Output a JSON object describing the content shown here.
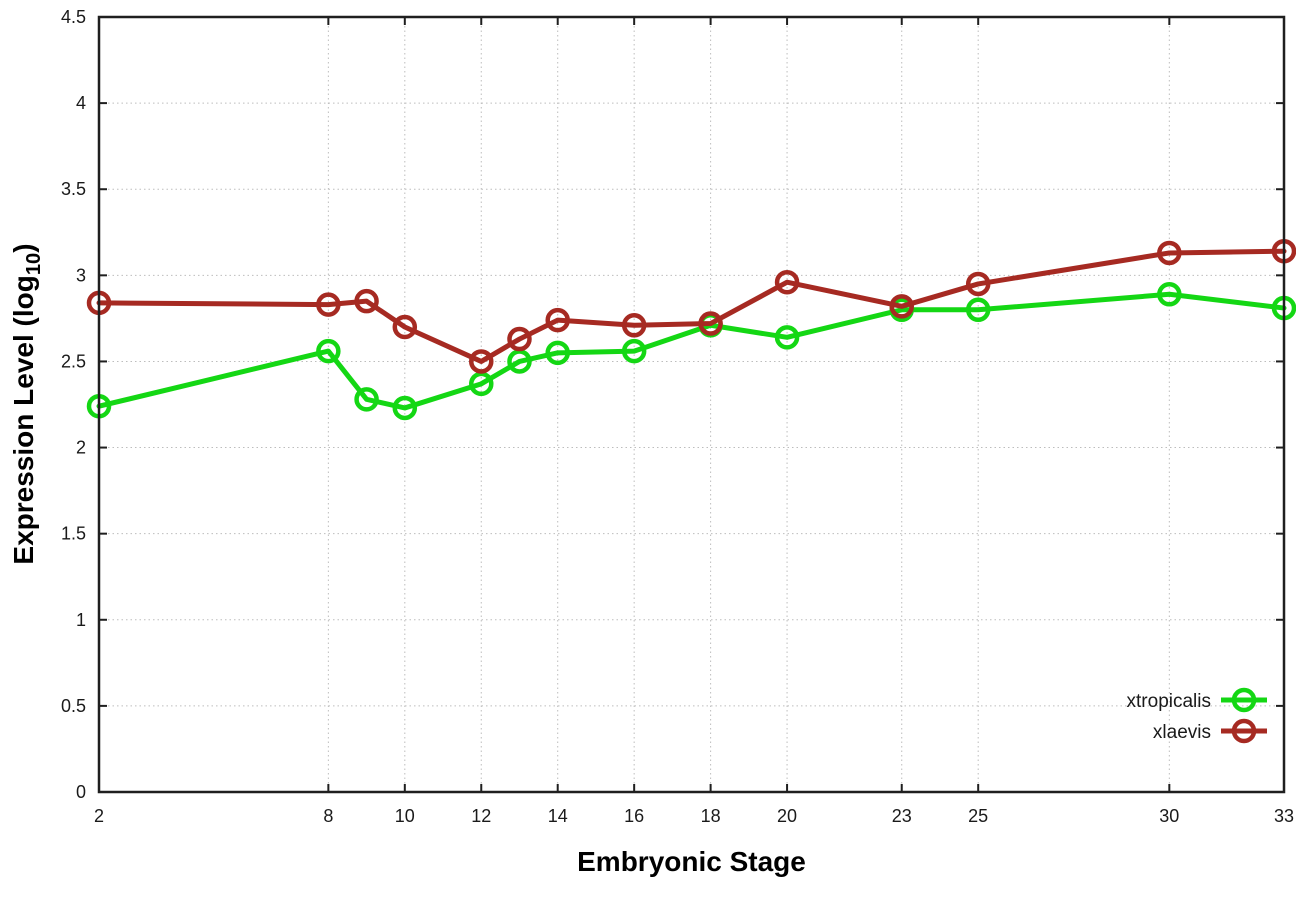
{
  "chart_data": {
    "type": "line",
    "title": "",
    "xlabel": "Embryonic Stage",
    "ylabel": "Expression Level (log10)",
    "ylabel_parts": {
      "prefix": "Expression Level (log",
      "sub": "10",
      "suffix": ")"
    },
    "x": [
      2,
      8,
      9,
      10,
      12,
      13,
      14,
      16,
      18,
      20,
      23,
      25,
      30,
      33
    ],
    "series": [
      {
        "name": "xtropicalis",
        "color": "#14d714",
        "values": [
          2.24,
          2.56,
          2.28,
          2.23,
          2.37,
          2.5,
          2.55,
          2.56,
          2.71,
          2.64,
          2.8,
          2.8,
          2.89,
          2.81
        ]
      },
      {
        "name": "xlaevis",
        "color": "#a62a22",
        "values": [
          2.84,
          2.83,
          2.85,
          2.7,
          2.5,
          2.63,
          2.74,
          2.71,
          2.72,
          2.96,
          2.82,
          2.95,
          3.13,
          3.14
        ]
      }
    ],
    "xtick_values": [
      2,
      8,
      10,
      12,
      14,
      16,
      18,
      20,
      23,
      25,
      30,
      33
    ],
    "xtick_labels": [
      "2",
      "8",
      "10",
      "12",
      "14",
      "16",
      "18",
      "20",
      "23",
      "25",
      "30",
      "33"
    ],
    "ytick_values": [
      0,
      0.5,
      1,
      1.5,
      2,
      2.5,
      3,
      3.5,
      4,
      4.5
    ],
    "ytick_labels": [
      "0",
      "0.5",
      "1",
      "1.5",
      "2",
      "2.5",
      "3",
      "3.5",
      "4",
      "4.5"
    ],
    "xlim": [
      2,
      33
    ],
    "ylim": [
      0,
      4.5
    ],
    "grid": true,
    "legend_position": "bottom-right",
    "marker": "open-circle"
  },
  "colors": {
    "background": "#ffffff",
    "axis": "#1f1f1f",
    "grid": "#bdbdbd",
    "tick_text": "#1a1a1a",
    "legend_text": "#1a1a1a"
  }
}
